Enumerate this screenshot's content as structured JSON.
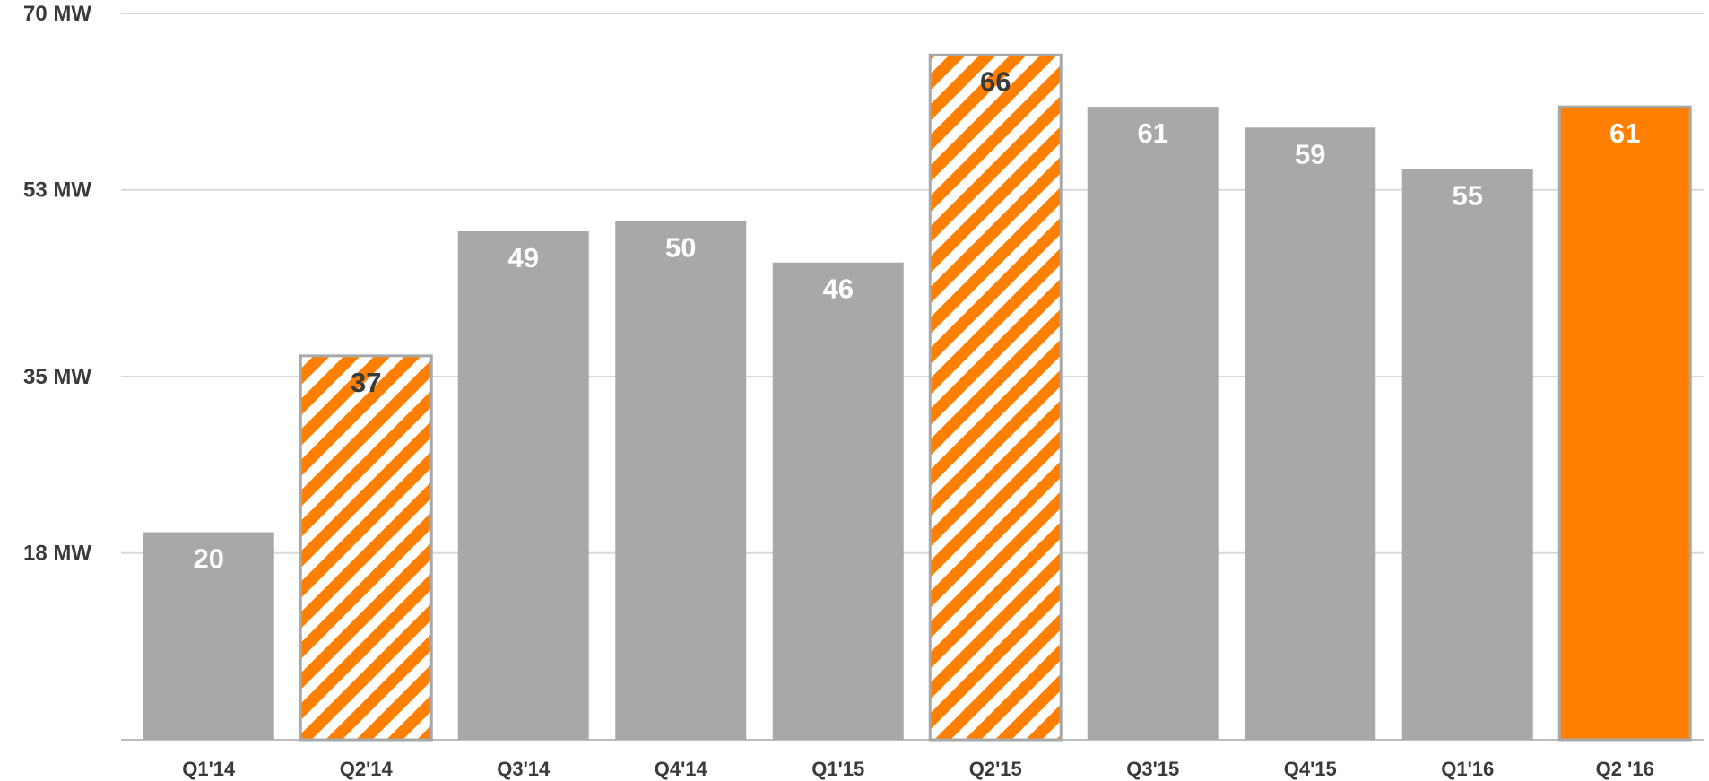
{
  "chart_data": {
    "type": "bar",
    "title": "",
    "xlabel": "",
    "ylabel": "",
    "ylim": [
      0,
      70
    ],
    "y_ticks": [
      0,
      18,
      35,
      53,
      70
    ],
    "y_tick_labels": [
      "",
      "18 MW",
      "35 MW",
      "53 MW",
      "70 MW"
    ],
    "grid": true,
    "categories": [
      "Q1'14",
      "Q2'14",
      "Q3'14",
      "Q4'14",
      "Q1'15",
      "Q2'15",
      "Q3'15",
      "Q4'15",
      "Q1'16",
      "Q2 '16"
    ],
    "values": [
      20,
      37,
      49,
      50,
      46,
      66,
      61,
      59,
      55,
      61
    ],
    "data_labels": [
      "20",
      "37",
      "49",
      "50",
      "46",
      "66",
      "61",
      "59",
      "55",
      "61"
    ],
    "bar_styles": [
      "solid-gray",
      "striped-orange",
      "solid-gray",
      "solid-gray",
      "solid-gray",
      "striped-orange",
      "solid-gray",
      "solid-gray",
      "solid-gray",
      "solid-orange"
    ],
    "colors": {
      "gray": "#a7a8aa",
      "orange": "#ff7f00",
      "gridline": "#d9d9d9",
      "label_light": "#ffffff",
      "label_dark": "#3a3a3a"
    }
  }
}
